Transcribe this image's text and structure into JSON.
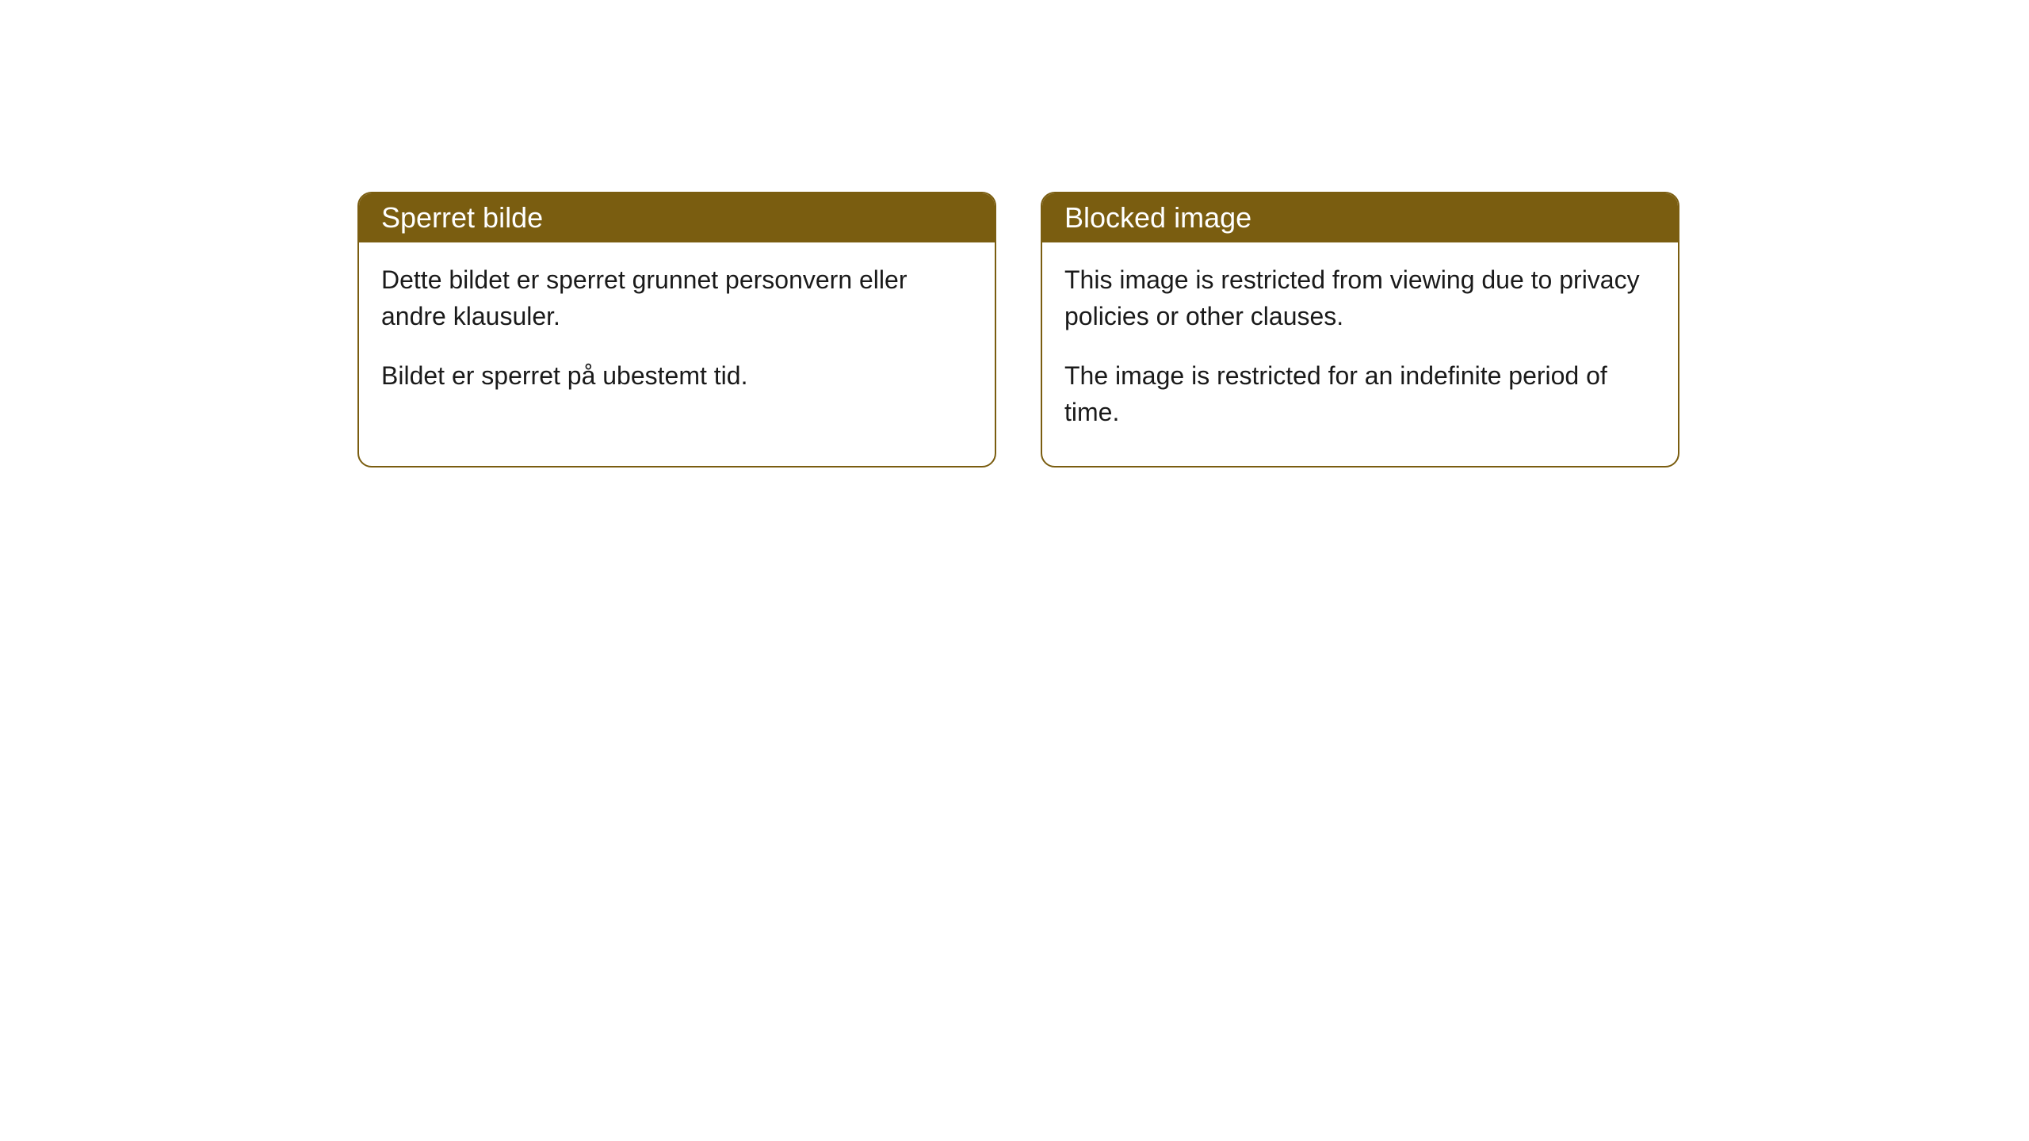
{
  "cards": [
    {
      "title": "Sperret bilde",
      "paragraph1": "Dette bildet er sperret grunnet personvern eller andre klausuler.",
      "paragraph2": "Bildet er sperret på ubestemt tid."
    },
    {
      "title": "Blocked image",
      "paragraph1": "This image is restricted from viewing due to privacy policies or other clauses.",
      "paragraph2": "The image is restricted for an indefinite period of time."
    }
  ],
  "styling": {
    "header_background": "#7a5d10",
    "header_text_color": "#ffffff",
    "border_color": "#7a5d10",
    "body_background": "#ffffff",
    "body_text_color": "#1a1a1a",
    "border_radius": 18,
    "title_fontsize": 36,
    "body_fontsize": 32
  }
}
